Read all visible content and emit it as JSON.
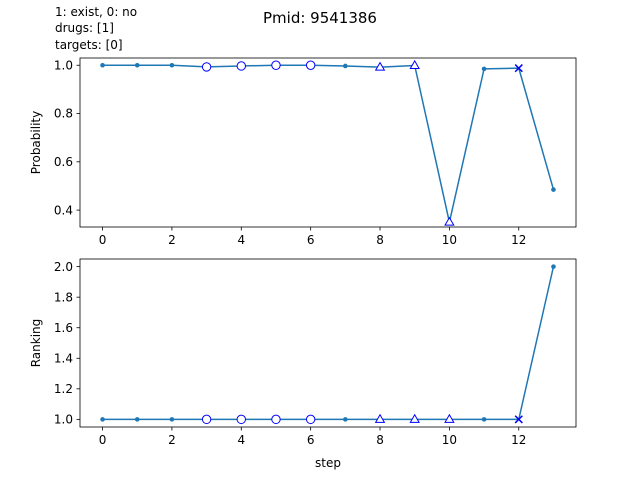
{
  "header": {
    "legend_lines": [
      "1: exist,    0: no",
      "drugs: [1]",
      "targets: [0]"
    ],
    "title": "Pmid: 9541386"
  },
  "colors": {
    "line": "#1f77b4",
    "marker_edge": "#0000ff",
    "axes": "#000000",
    "background": "#ffffff"
  },
  "chart_data": [
    {
      "type": "line",
      "title": "Pmid: 9541386",
      "xlabel": "",
      "ylabel": "Probability",
      "xlim": [
        -0.65,
        13.65
      ],
      "ylim": [
        0.33,
        1.03
      ],
      "grid": false,
      "x_ticks": [
        0,
        2,
        4,
        6,
        8,
        10,
        12
      ],
      "y_ticks": [
        0.4,
        0.6,
        0.8,
        1.0
      ],
      "y_tick_labels": [
        "0.4",
        "0.6",
        "0.8",
        "1.0"
      ],
      "x": [
        0,
        1,
        2,
        3,
        4,
        5,
        6,
        7,
        8,
        9,
        10,
        11,
        12,
        13
      ],
      "y": [
        1.0,
        1.0,
        1.0,
        0.993,
        0.997,
        1.0,
        1.0,
        0.997,
        0.992,
        0.999,
        0.35,
        0.985,
        0.988,
        0.485
      ],
      "markers": [
        "dot",
        "dot",
        "dot",
        "circle",
        "circle",
        "circle",
        "circle",
        "dot",
        "triangle",
        "triangle",
        "triangle",
        "dot",
        "x",
        "dot"
      ]
    },
    {
      "type": "line",
      "xlabel": "step",
      "ylabel": "Ranking",
      "xlim": [
        -0.65,
        13.65
      ],
      "ylim": [
        0.95,
        2.05
      ],
      "grid": false,
      "x_ticks": [
        0,
        2,
        4,
        6,
        8,
        10,
        12
      ],
      "y_ticks": [
        1.0,
        1.2,
        1.4,
        1.6,
        1.8,
        2.0
      ],
      "y_tick_labels": [
        "1.0",
        "1.2",
        "1.4",
        "1.6",
        "1.8",
        "2.0"
      ],
      "x": [
        0,
        1,
        2,
        3,
        4,
        5,
        6,
        7,
        8,
        9,
        10,
        11,
        12,
        13
      ],
      "y": [
        1,
        1,
        1,
        1,
        1,
        1,
        1,
        1,
        1,
        1,
        1,
        1,
        1,
        2
      ],
      "markers": [
        "dot",
        "dot",
        "dot",
        "circle",
        "circle",
        "circle",
        "circle",
        "dot",
        "triangle",
        "triangle",
        "triangle",
        "dot",
        "x",
        "dot"
      ]
    }
  ]
}
